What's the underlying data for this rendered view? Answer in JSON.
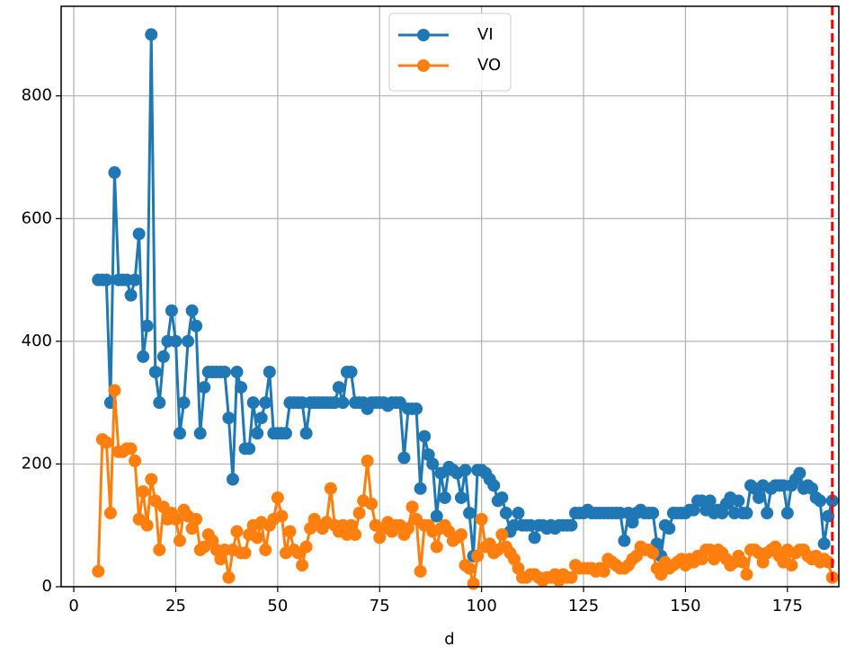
{
  "chart_data": {
    "type": "line",
    "x_label": "d",
    "xlim": [
      -3.1,
      187.6
    ],
    "ylim": [
      0,
      946
    ],
    "xticks": [
      0,
      25,
      50,
      75,
      100,
      125,
      150,
      175
    ],
    "yticks": [
      0,
      200,
      400,
      600,
      800
    ],
    "grid": true,
    "legend": "upper center",
    "vline": {
      "x": 186,
      "color": "#ff0000"
    },
    "x": [
      6,
      7,
      8,
      9,
      10,
      11,
      12,
      13,
      14,
      15,
      16,
      17,
      18,
      19,
      20,
      21,
      22,
      23,
      24,
      25,
      26,
      27,
      28,
      29,
      30,
      31,
      32,
      33,
      34,
      35,
      36,
      37,
      38,
      39,
      40,
      41,
      42,
      43,
      44,
      45,
      46,
      47,
      48,
      49,
      50,
      51,
      52,
      53,
      54,
      55,
      56,
      57,
      58,
      59,
      60,
      61,
      62,
      63,
      64,
      65,
      66,
      67,
      68,
      69,
      70,
      71,
      72,
      73,
      74,
      75,
      76,
      77,
      78,
      79,
      80,
      81,
      82,
      83,
      84,
      85,
      86,
      87,
      88,
      89,
      90,
      91,
      92,
      93,
      94,
      95,
      96,
      97,
      98,
      99,
      100,
      101,
      102,
      103,
      104,
      105,
      106,
      107,
      108,
      109,
      110,
      111,
      112,
      113,
      114,
      115,
      116,
      117,
      118,
      119,
      120,
      121,
      122,
      123,
      124,
      125,
      126,
      127,
      128,
      129,
      130,
      131,
      132,
      133,
      134,
      135,
      136,
      137,
      138,
      139,
      140,
      141,
      142,
      143,
      144,
      145,
      146,
      147,
      148,
      149,
      150,
      151,
      152,
      153,
      154,
      155,
      156,
      157,
      158,
      159,
      160,
      161,
      162,
      163,
      164,
      165,
      166,
      167,
      168,
      169,
      170,
      171,
      172,
      173,
      174,
      175,
      176,
      177,
      178,
      179,
      180,
      181,
      182,
      183,
      184,
      185,
      186
    ],
    "series": [
      {
        "name": "VI",
        "color": "#1f77b4",
        "values": [
          500,
          500,
          500,
          300,
          675,
          500,
          500,
          500,
          475,
          500,
          575,
          375,
          425,
          900,
          350,
          300,
          375,
          400,
          450,
          400,
          250,
          300,
          400,
          450,
          425,
          250,
          325,
          350,
          350,
          350,
          350,
          350,
          275,
          175,
          350,
          325,
          225,
          225,
          300,
          250,
          275,
          300,
          350,
          250,
          250,
          250,
          250,
          300,
          300,
          300,
          300,
          250,
          300,
          300,
          300,
          300,
          300,
          300,
          300,
          325,
          300,
          350,
          350,
          300,
          300,
          300,
          290,
          300,
          300,
          300,
          300,
          295,
          300,
          300,
          300,
          210,
          290,
          290,
          290,
          160,
          245,
          215,
          200,
          115,
          185,
          145,
          195,
          190,
          185,
          145,
          190,
          120,
          50,
          190,
          190,
          185,
          175,
          165,
          140,
          145,
          120,
          90,
          100,
          120,
          100,
          100,
          100,
          80,
          100,
          100,
          95,
          100,
          95,
          100,
          100,
          100,
          100,
          120,
          120,
          120,
          125,
          120,
          120,
          120,
          120,
          120,
          120,
          120,
          120,
          75,
          120,
          105,
          120,
          125,
          120,
          120,
          120,
          70,
          50,
          100,
          95,
          120,
          120,
          120,
          120,
          125,
          125,
          140,
          140,
          125,
          140,
          120,
          125,
          120,
          135,
          145,
          120,
          140,
          120,
          120,
          165,
          160,
          145,
          165,
          120,
          160,
          165,
          165,
          165,
          120,
          165,
          175,
          185,
          160,
          165,
          160,
          145,
          140,
          70,
          115,
          140
        ]
      },
      {
        "name": "VO",
        "color": "#ff7f0e",
        "values": [
          25,
          240,
          235,
          120,
          320,
          220,
          220,
          225,
          225,
          205,
          110,
          155,
          100,
          175,
          140,
          60,
          130,
          110,
          120,
          110,
          75,
          125,
          115,
          95,
          110,
          60,
          65,
          85,
          75,
          60,
          45,
          60,
          15,
          60,
          90,
          55,
          55,
          85,
          100,
          80,
          105,
          60,
          100,
          110,
          145,
          115,
          55,
          90,
          60,
          55,
          35,
          65,
          95,
          110,
          100,
          95,
          105,
          160,
          100,
          90,
          100,
          85,
          100,
          85,
          120,
          140,
          205,
          135,
          100,
          80,
          95,
          105,
          90,
          100,
          100,
          85,
          95,
          130,
          110,
          25,
          100,
          100,
          90,
          65,
          95,
          100,
          90,
          75,
          80,
          85,
          35,
          30,
          5,
          50,
          110,
          65,
          70,
          55,
          60,
          85,
          65,
          55,
          45,
          30,
          15,
          15,
          20,
          20,
          15,
          10,
          15,
          15,
          20,
          10,
          20,
          15,
          15,
          35,
          30,
          30,
          30,
          30,
          25,
          30,
          25,
          45,
          40,
          35,
          30,
          30,
          35,
          45,
          50,
          65,
          60,
          60,
          55,
          30,
          20,
          40,
          30,
          35,
          40,
          45,
          35,
          45,
          40,
          50,
          45,
          60,
          60,
          45,
          60,
          55,
          45,
          35,
          40,
          50,
          40,
          20,
          60,
          60,
          55,
          40,
          55,
          60,
          65,
          50,
          40,
          60,
          35,
          55,
          60,
          60,
          50,
          45,
          50,
          40,
          45,
          40,
          15
        ]
      }
    ]
  }
}
